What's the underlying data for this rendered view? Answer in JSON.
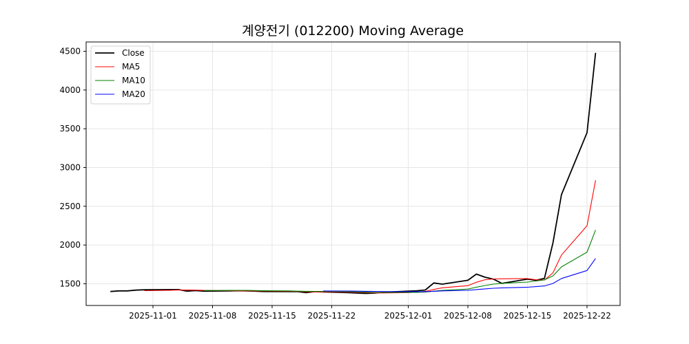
{
  "chart_data": {
    "type": "line",
    "title": "계양전기 (012200) Moving Average",
    "xlabel": "",
    "ylabel": "",
    "ylim": [
      1220,
      4620
    ],
    "yticks": [
      1500,
      2000,
      2500,
      3000,
      3500,
      4000,
      4500
    ],
    "xticks": [
      "2025-11-01",
      "2025-11-08",
      "2025-11-15",
      "2025-11-22",
      "2025-12-01",
      "2025-12-08",
      "2025-12-15",
      "2025-12-22"
    ],
    "grid": true,
    "legend_position": "upper left",
    "x": [
      "2025-10-27",
      "2025-10-28",
      "2025-10-29",
      "2025-10-30",
      "2025-10-31",
      "2025-11-03",
      "2025-11-04",
      "2025-11-05",
      "2025-11-06",
      "2025-11-07",
      "2025-11-10",
      "2025-11-11",
      "2025-11-12",
      "2025-11-13",
      "2025-11-14",
      "2025-11-17",
      "2025-11-18",
      "2025-11-19",
      "2025-11-20",
      "2025-11-21",
      "2025-11-24",
      "2025-11-25",
      "2025-11-26",
      "2025-11-27",
      "2025-11-28",
      "2025-12-01",
      "2025-12-02",
      "2025-12-03",
      "2025-12-04",
      "2025-12-05",
      "2025-12-08",
      "2025-12-09",
      "2025-12-10",
      "2025-12-11",
      "2025-12-12",
      "2025-12-15",
      "2025-12-16",
      "2025-12-17",
      "2025-12-18",
      "2025-12-19",
      "2025-12-22",
      "2025-12-23"
    ],
    "series": [
      {
        "name": "Close",
        "color": "#000000",
        "width": 1.8,
        "values": [
          1400,
          1408,
          1408,
          1418,
          1422,
          1425,
          1425,
          1405,
          1412,
          1405,
          1408,
          1410,
          1408,
          1405,
          1400,
          1398,
          1398,
          1385,
          1398,
          1395,
          1385,
          1380,
          1375,
          1380,
          1390,
          1405,
          1410,
          1420,
          1510,
          1495,
          1545,
          1625,
          1585,
          1560,
          1505,
          1560,
          1545,
          1570,
          2030,
          2650,
          3450,
          4480
        ]
      },
      {
        "name": "MA5",
        "color": "#ff0000",
        "width": 1.1,
        "values": [
          null,
          null,
          null,
          null,
          1411,
          1416,
          1420,
          1419,
          1418,
          1414,
          1411,
          1408,
          1409,
          1407,
          1406,
          1404,
          1402,
          1397,
          1396,
          1395,
          1392,
          1389,
          1387,
          1383,
          1382,
          1386,
          1392,
          1401,
          1427,
          1448,
          1476,
          1519,
          1552,
          1562,
          1564,
          1567,
          1551,
          1548,
          1642,
          1871,
          2249,
          2836
        ]
      },
      {
        "name": "MA10",
        "color": "#008000",
        "width": 1.1,
        "values": [
          null,
          null,
          null,
          null,
          null,
          null,
          null,
          null,
          null,
          1413,
          1414,
          1414,
          1414,
          1413,
          1410,
          1408,
          1405,
          1403,
          1402,
          1401,
          1398,
          1395,
          1392,
          1389,
          1388,
          1389,
          1390,
          1394,
          1405,
          1415,
          1431,
          1456,
          1477,
          1495,
          1506,
          1522,
          1535,
          1550,
          1602,
          1718,
          1908,
          2194
        ]
      },
      {
        "name": "MA20",
        "color": "#0000ff",
        "width": 1.1,
        "values": [
          null,
          null,
          null,
          null,
          null,
          null,
          null,
          null,
          null,
          null,
          null,
          null,
          null,
          null,
          null,
          null,
          null,
          null,
          null,
          1407,
          1406,
          1405,
          1403,
          1401,
          1399,
          1398,
          1398,
          1398,
          1403,
          1408,
          1415,
          1425,
          1434,
          1442,
          1447,
          1455,
          1463,
          1472,
          1504,
          1568,
          1671,
          1826
        ]
      }
    ]
  }
}
